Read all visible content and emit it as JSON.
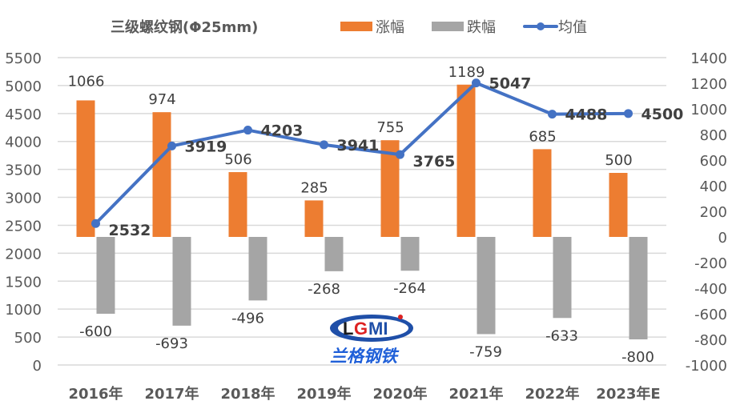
{
  "title": "三级螺纹钢(Φ25mm)",
  "legend": [
    {
      "label": "涨幅",
      "color": "#ED7D31",
      "type": "bar"
    },
    {
      "label": "跌幅",
      "color": "#A5A5A5",
      "type": "bar"
    },
    {
      "label": "均值",
      "color": "#4472C4",
      "type": "line"
    }
  ],
  "logo": {
    "text": "LGMI",
    "subtitle": "兰格钢铁"
  },
  "chart_data": {
    "type": "bar",
    "title": "三级螺纹钢(Φ25mm)",
    "categories": [
      "2016年",
      "2017年",
      "2018年",
      "2019年",
      "2020年",
      "2021年",
      "2022年",
      "2023年E"
    ],
    "series": [
      {
        "name": "涨幅",
        "axis": "right",
        "type": "bar",
        "values": [
          1066,
          974,
          506,
          285,
          755,
          1189,
          685,
          500
        ]
      },
      {
        "name": "跌幅",
        "axis": "right",
        "type": "bar",
        "values": [
          -600,
          -693,
          -496,
          -268,
          -264,
          -759,
          -633,
          -800
        ]
      },
      {
        "name": "均值",
        "axis": "left",
        "type": "line",
        "values": [
          2532,
          3919,
          4203,
          3941,
          3765,
          5047,
          4488,
          4500
        ]
      }
    ],
    "left_axis": {
      "min": 0,
      "max": 5500,
      "step": 500,
      "ticks": [
        0,
        500,
        1000,
        1500,
        2000,
        2500,
        3000,
        3500,
        4000,
        4500,
        5000,
        5500
      ]
    },
    "right_axis": {
      "min": -1000,
      "max": 1400,
      "step": 200,
      "ticks": [
        -1000,
        -800,
        -600,
        -400,
        -200,
        0,
        200,
        400,
        600,
        800,
        1000,
        1200,
        1400
      ]
    },
    "grid": true,
    "legend_position": "top",
    "xlabel": "",
    "ylabel": ""
  }
}
